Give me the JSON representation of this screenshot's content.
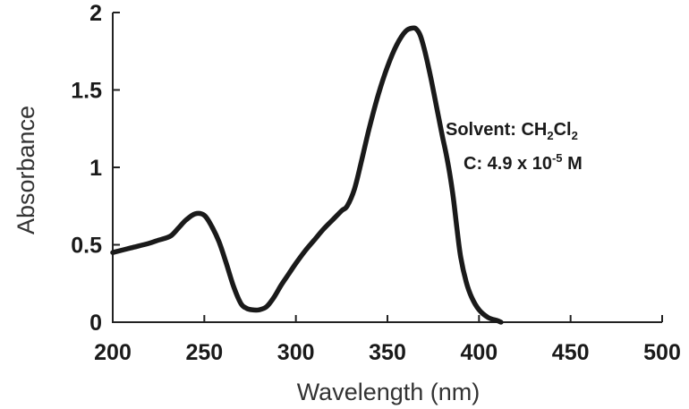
{
  "chart_data": {
    "type": "line",
    "title": "",
    "xlabel": "Wavelength (nm)",
    "ylabel": "Absorbance",
    "xlim": [
      200,
      500
    ],
    "ylim": [
      0,
      2
    ],
    "x_ticks": [
      200,
      250,
      300,
      350,
      400,
      450,
      500
    ],
    "y_ticks": [
      0,
      0.5,
      1,
      1.5,
      2
    ],
    "x_tick_labels": [
      "200",
      "250",
      "300",
      "350",
      "400",
      "450",
      "500"
    ],
    "y_tick_labels": [
      "0",
      "0.5",
      "1",
      "1.5",
      "2"
    ],
    "grid": false,
    "line_color": "#1a1a1a",
    "annotation": {
      "solvent_label": "Solvent: CH",
      "solvent_sub1": "2",
      "solvent_mid": "Cl",
      "solvent_sub2": "2",
      "conc_label": "C: 4.9 x 10",
      "conc_exp": "-5",
      "conc_unit": " M"
    },
    "series": [
      {
        "x": [
          200,
          210,
          220,
          225,
          228,
          232,
          236,
          240,
          245,
          250,
          254,
          258,
          262,
          266,
          270,
          273,
          276,
          280,
          284,
          288,
          292,
          296,
          300,
          305,
          310,
          315,
          320,
          325,
          328,
          332,
          336,
          340,
          345,
          350,
          355,
          360,
          364,
          366,
          368,
          370,
          372,
          374,
          376,
          378,
          380,
          382,
          384,
          386,
          388,
          390,
          393,
          396,
          400,
          405,
          410,
          412
        ],
        "y": [
          0.45,
          0.48,
          0.51,
          0.53,
          0.54,
          0.56,
          0.61,
          0.66,
          0.7,
          0.69,
          0.62,
          0.52,
          0.38,
          0.23,
          0.12,
          0.09,
          0.08,
          0.08,
          0.1,
          0.16,
          0.24,
          0.31,
          0.38,
          0.46,
          0.53,
          0.6,
          0.66,
          0.72,
          0.75,
          0.86,
          1.05,
          1.25,
          1.47,
          1.65,
          1.79,
          1.88,
          1.9,
          1.89,
          1.85,
          1.77,
          1.67,
          1.56,
          1.44,
          1.32,
          1.2,
          1.09,
          0.96,
          0.8,
          0.6,
          0.42,
          0.26,
          0.16,
          0.08,
          0.03,
          0.01,
          0.0
        ]
      }
    ]
  }
}
